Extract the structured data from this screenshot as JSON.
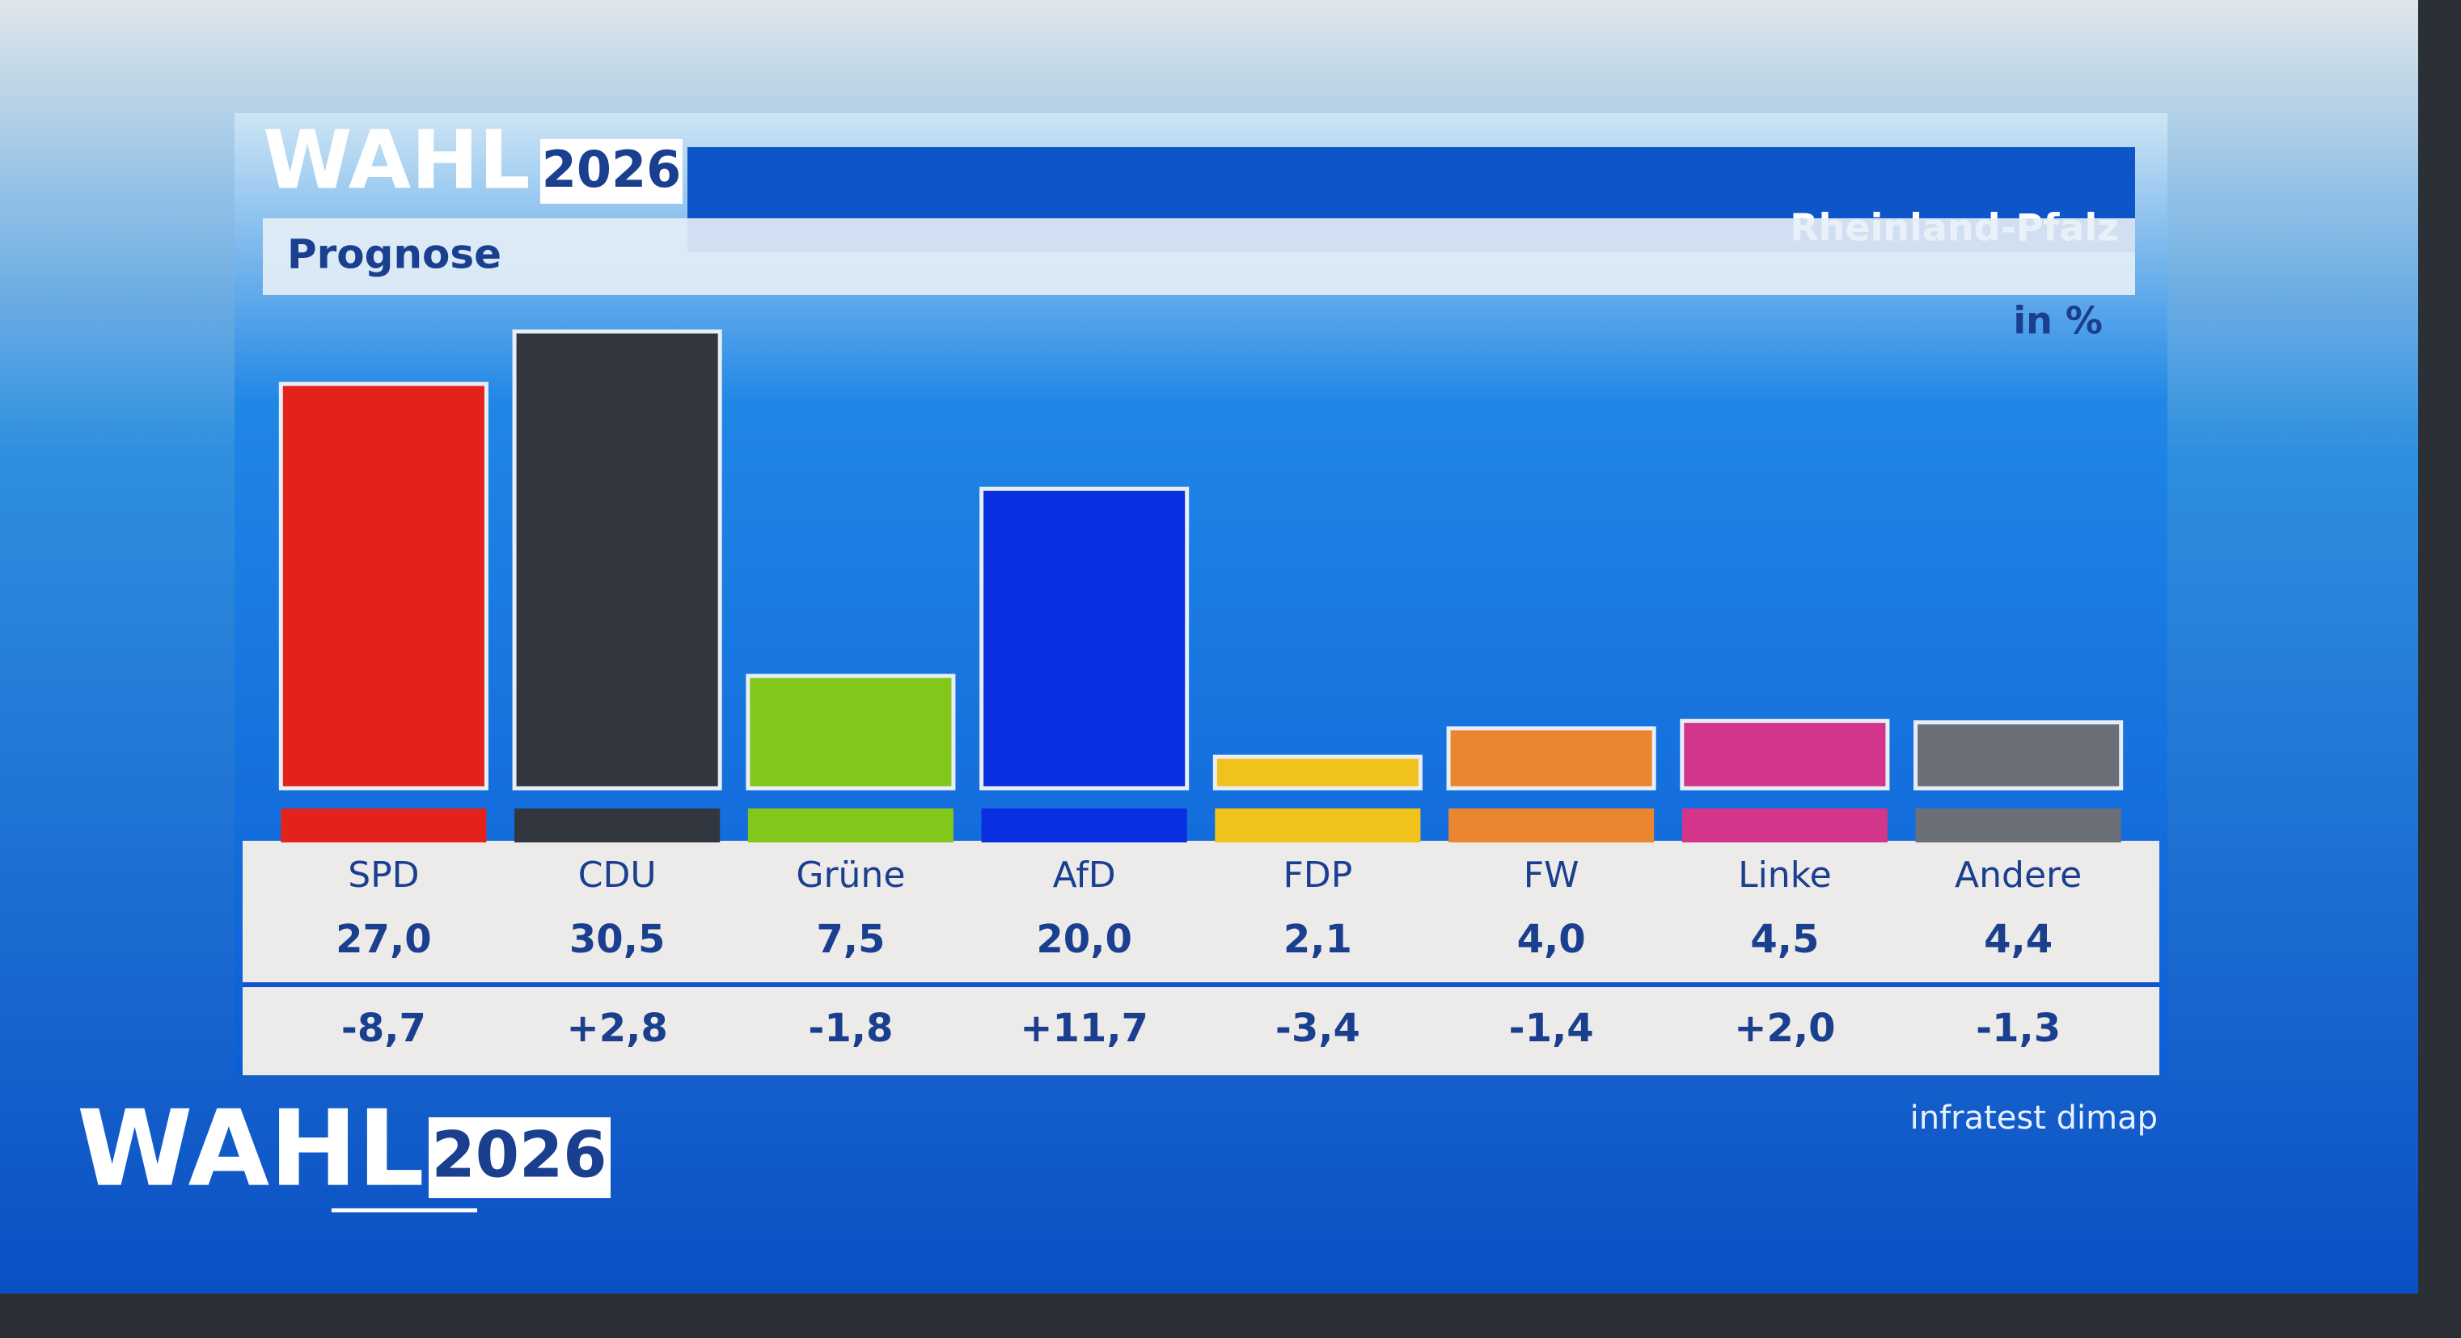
{
  "chart_data": {
    "type": "bar",
    "brand": "WAHL",
    "year": "2026",
    "region": "Rheinland-Pfalz",
    "title": "Prognose",
    "unit": "in %",
    "source": "infratest dimap",
    "categories": [
      "SPD",
      "CDU",
      "Grüne",
      "AfD",
      "FDP",
      "FW",
      "Linke",
      "Andere"
    ],
    "values": [
      27.0,
      30.5,
      7.5,
      20.0,
      2.1,
      4.0,
      4.5,
      4.4
    ],
    "value_labels": [
      "27,0",
      "30,5",
      "7,5",
      "20,0",
      "2,1",
      "4,0",
      "4,5",
      "4,4"
    ],
    "changes": [
      -8.7,
      2.8,
      -1.8,
      11.7,
      -3.4,
      -1.4,
      2.0,
      -1.3
    ],
    "change_labels": [
      "-8,7",
      "+2,8",
      "-1,8",
      "+11,7",
      "-3,4",
      "-1,4",
      "+2,0",
      "-1,3"
    ],
    "colors": [
      "#e3231b",
      "#32373f",
      "#82c81a",
      "#0a2fe0",
      "#f2c21c",
      "#ea8530",
      "#d2358a",
      "#6b6f78"
    ]
  }
}
